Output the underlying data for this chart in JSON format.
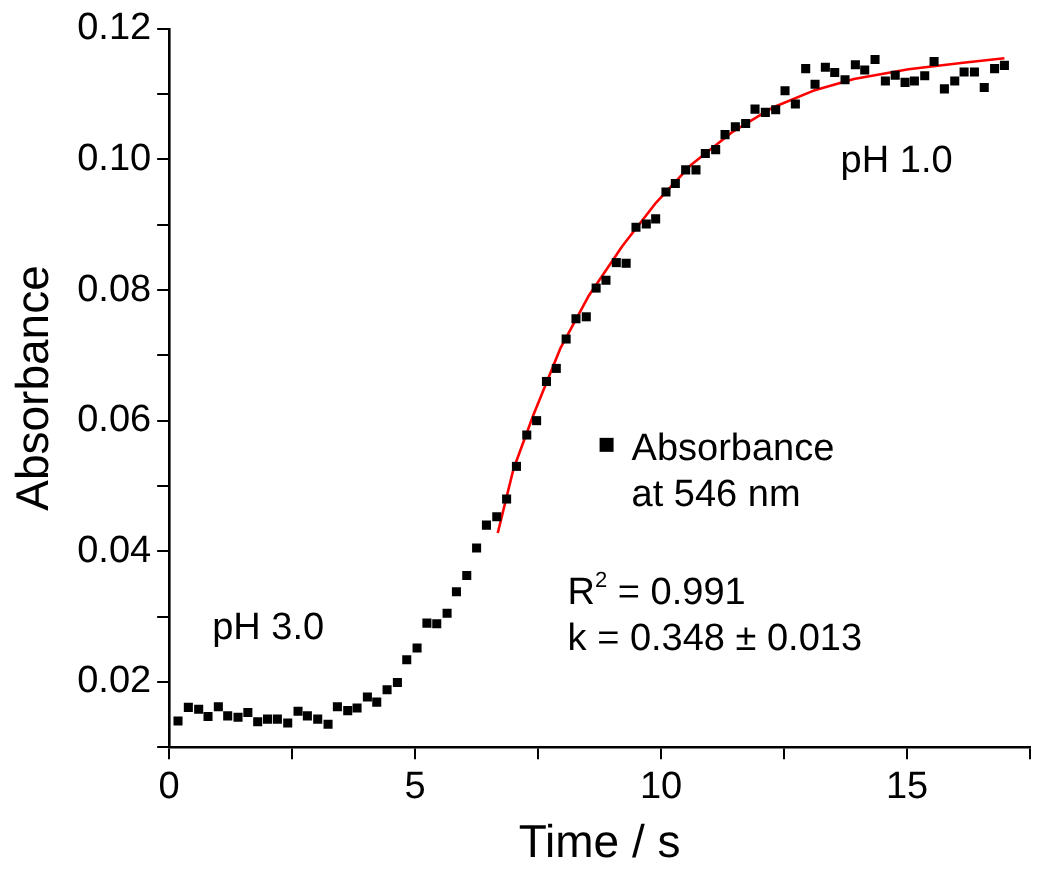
{
  "chart_data": {
    "type": "scatter",
    "xlabel": "Time / s",
    "ylabel": "Absorbance",
    "xlim": [
      0,
      17.5
    ],
    "xticks": [
      0,
      {
        "value": 2.5,
        "label": null
      },
      5,
      {
        "value": 7.5,
        "label": null
      },
      10,
      {
        "value": 12.5,
        "label": null
      },
      15,
      {
        "value": 17.5,
        "label": null
      }
    ],
    "ylim": [
      0.01,
      0.12
    ],
    "yticks": [
      {
        "value": 0.01,
        "label": null
      },
      0.02,
      {
        "value": 0.03,
        "label": null
      },
      0.04,
      {
        "value": 0.05,
        "label": null
      },
      0.06,
      {
        "value": 0.07,
        "label": null
      },
      0.08,
      {
        "value": 0.09,
        "label": null
      },
      {
        "value": 0.1,
        "label": "0.10"
      },
      {
        "value": 0.11,
        "label": null
      },
      0.12
    ],
    "grid": false,
    "legend": "right",
    "series": [
      {
        "name": "Absorbance at 546 nm",
        "type": "scatter",
        "marker": "square",
        "color": "#000000",
        "x": [
          0.18,
          0.39,
          0.6,
          0.79,
          1.0,
          1.19,
          1.4,
          1.6,
          1.8,
          2.0,
          2.2,
          2.41,
          2.62,
          2.81,
          3.02,
          3.23,
          3.42,
          3.63,
          3.82,
          4.03,
          4.22,
          4.43,
          4.64,
          4.83,
          5.04,
          5.24,
          5.44,
          5.65,
          5.84,
          6.05,
          6.25,
          6.45,
          6.66,
          6.86,
          7.06,
          7.27,
          7.47,
          7.67,
          7.87,
          8.07,
          8.27,
          8.48,
          8.68,
          8.88,
          9.09,
          9.29,
          9.49,
          9.7,
          9.89,
          10.1,
          10.29,
          10.5,
          10.71,
          10.9,
          11.11,
          11.3,
          11.51,
          11.72,
          11.91,
          12.12,
          12.33,
          12.52,
          12.73,
          12.94,
          13.13,
          13.34,
          13.53,
          13.74,
          13.95,
          14.14,
          14.35,
          14.56,
          14.76,
          14.96,
          15.15,
          15.36,
          15.55,
          15.76,
          15.97,
          16.16,
          16.37,
          16.57,
          16.78,
          16.98
        ],
        "values": [
          0.014,
          0.0161,
          0.0158,
          0.0147,
          0.0162,
          0.0148,
          0.0146,
          0.0153,
          0.0139,
          0.0143,
          0.0143,
          0.0137,
          0.0155,
          0.0148,
          0.0143,
          0.0135,
          0.0162,
          0.0156,
          0.016,
          0.0177,
          0.0169,
          0.0188,
          0.0199,
          0.0234,
          0.0252,
          0.029,
          0.0289,
          0.0305,
          0.0338,
          0.0363,
          0.0405,
          0.044,
          0.0453,
          0.048,
          0.053,
          0.0578,
          0.06,
          0.066,
          0.068,
          0.0725,
          0.0756,
          0.0759,
          0.0803,
          0.0815,
          0.0842,
          0.0841,
          0.0896,
          0.0901,
          0.0909,
          0.095,
          0.0963,
          0.0984,
          0.0984,
          0.1009,
          0.1015,
          0.1038,
          0.105,
          0.1055,
          0.1077,
          0.1072,
          0.1076,
          0.1105,
          0.1085,
          0.1139,
          0.1115,
          0.1141,
          0.1133,
          0.1122,
          0.1145,
          0.1137,
          0.1153,
          0.112,
          0.1129,
          0.1118,
          0.112,
          0.1128,
          0.115,
          0.1108,
          0.112,
          0.1134,
          0.1134,
          0.111,
          0.1139,
          0.1144
        ]
      },
      {
        "type": "line",
        "marker": "none",
        "color": "#ff0000",
        "x": [
          6.68,
          7.0,
          7.4,
          7.96,
          8.52,
          9.21,
          9.9,
          10.6,
          11.43,
          12.26,
          13.09,
          13.92,
          15.03,
          16.14,
          16.98
        ],
        "values": [
          0.0428,
          0.0526,
          0.0608,
          0.0712,
          0.079,
          0.0867,
          0.0934,
          0.0991,
          0.1041,
          0.1079,
          0.1105,
          0.1123,
          0.1138,
          0.1148,
          0.1155
        ]
      }
    ],
    "annotations": [
      "pH 3.0",
      "pH 1.0",
      "R$^{2}$ = 0.991",
      "k = 0.348 ± 0.013"
    ]
  }
}
